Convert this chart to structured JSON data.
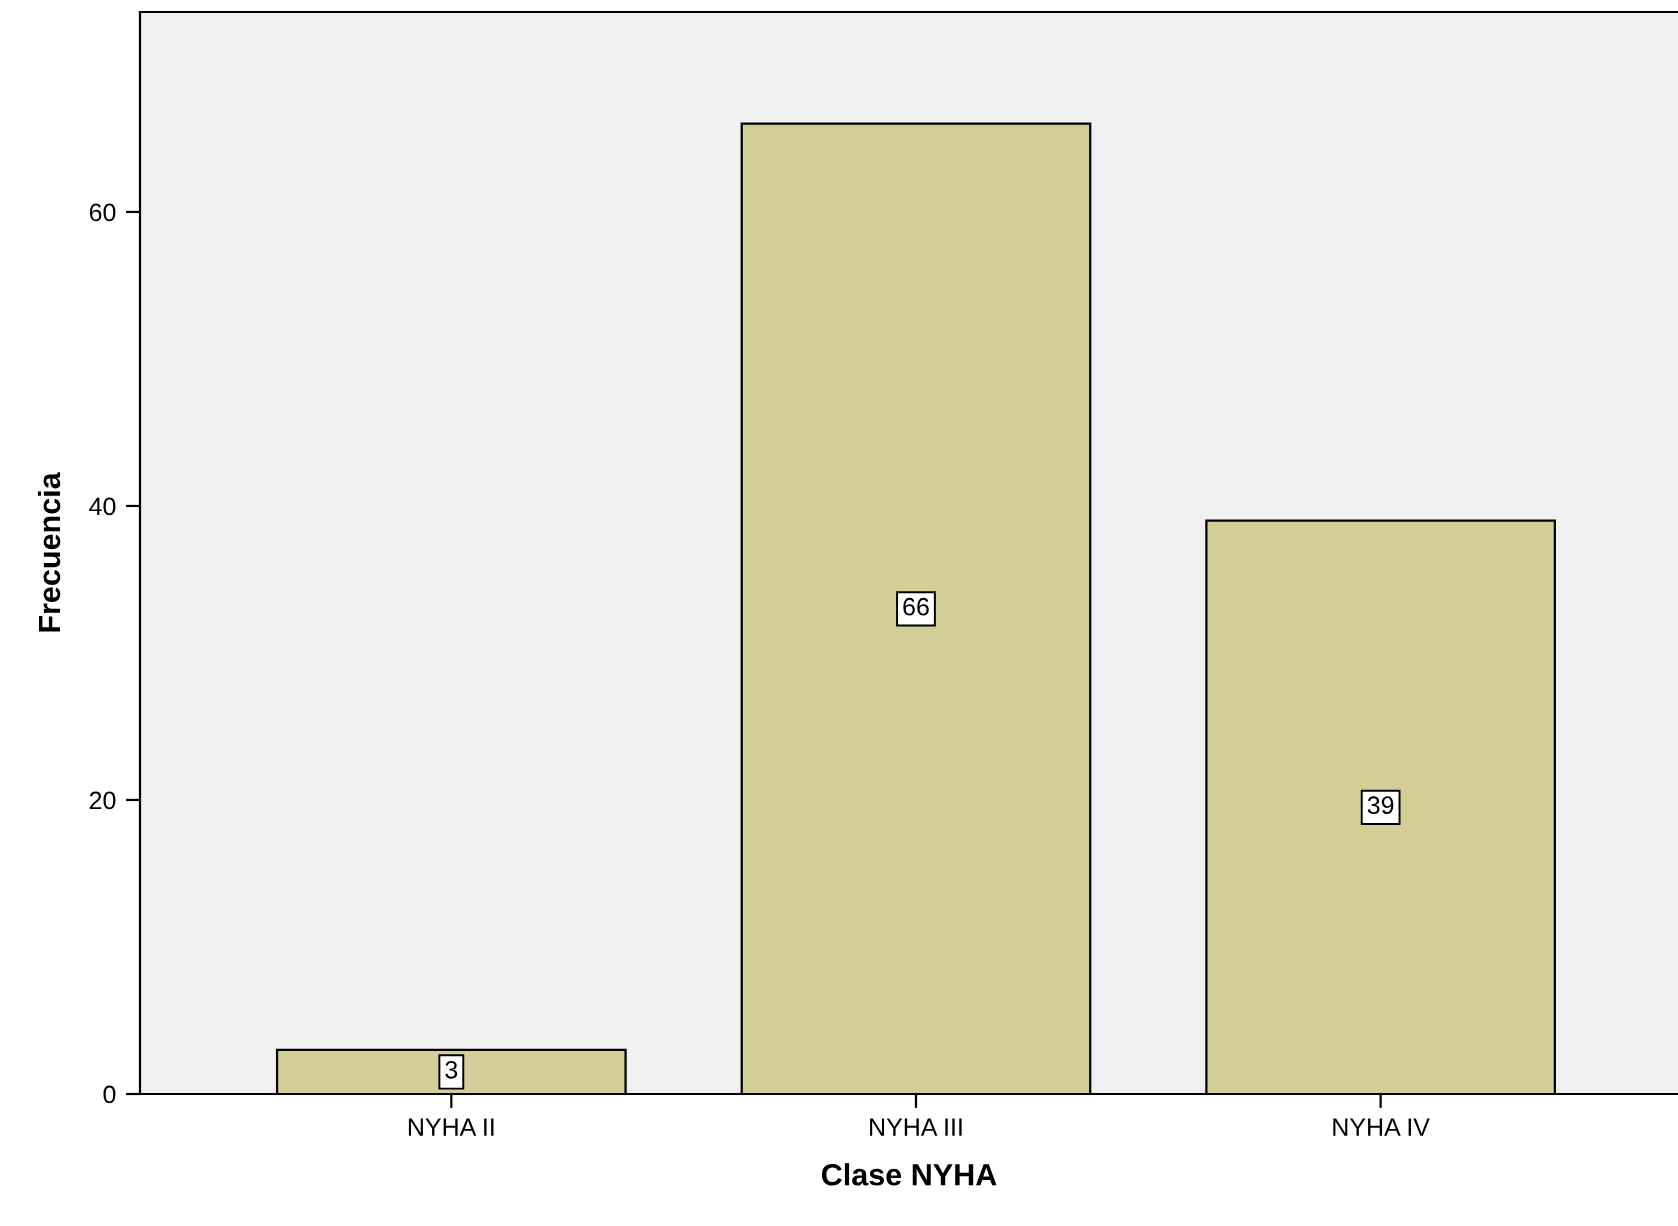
{
  "chart_data": {
    "type": "bar",
    "xlabel": "Clase NYHA",
    "ylabel": "Frecuencia",
    "categories": [
      "NYHA II",
      "NYHA III",
      "NYHA IV"
    ],
    "values": [
      3,
      66,
      39
    ],
    "color": "#d3ce97",
    "ylim": [
      0,
      73.6
    ],
    "yticks": [
      0,
      20,
      40,
      60
    ],
    "data_labels": true,
    "grid": false
  }
}
